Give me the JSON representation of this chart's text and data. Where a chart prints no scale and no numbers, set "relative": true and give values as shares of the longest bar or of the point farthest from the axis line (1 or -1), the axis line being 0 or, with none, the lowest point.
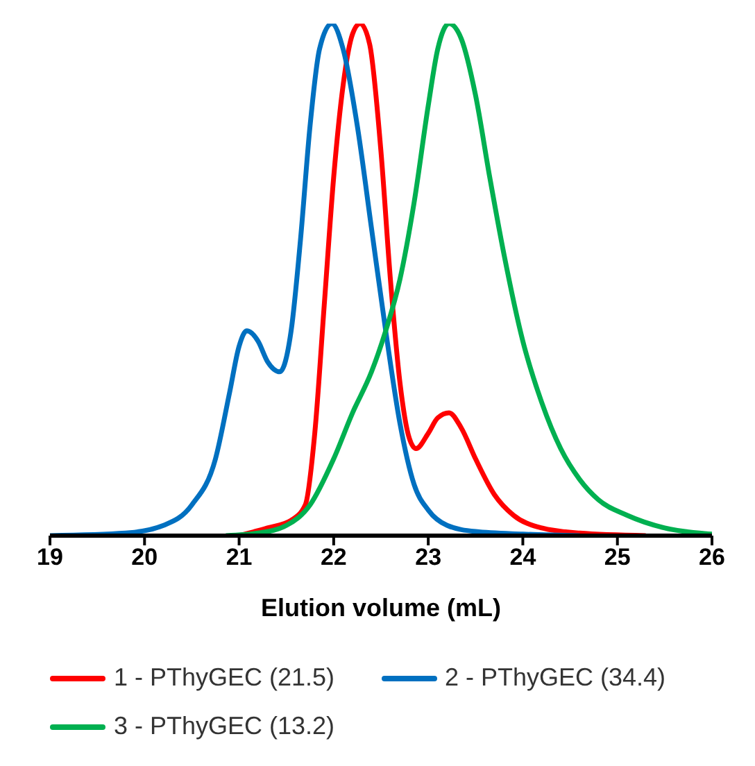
{
  "chart_data": {
    "type": "line",
    "xlabel": "Elution volume (mL)",
    "relative": true,
    "xlim": [
      19,
      26
    ],
    "xticks": [
      19,
      20,
      21,
      22,
      23,
      24,
      25,
      26
    ],
    "legend": "bottom",
    "grid": false,
    "marker": "none",
    "line_style": "solid",
    "series": [
      {
        "name": "1 - PThyGEC (21.5)",
        "color": "#ff0000",
        "x": [
          21.0,
          21.3,
          21.55,
          21.7,
          21.8,
          21.9,
          22.0,
          22.1,
          22.2,
          22.28,
          22.38,
          22.5,
          22.6,
          22.7,
          22.8,
          22.87,
          23.0,
          23.1,
          23.22,
          23.35,
          23.5,
          23.7,
          23.9,
          24.2,
          24.6,
          25.3
        ],
        "values": [
          0,
          0.015,
          0.03,
          0.06,
          0.2,
          0.45,
          0.7,
          0.88,
          0.98,
          1,
          0.96,
          0.75,
          0.5,
          0.3,
          0.19,
          0.17,
          0.2,
          0.23,
          0.24,
          0.21,
          0.15,
          0.08,
          0.04,
          0.015,
          0.005,
          0
        ]
      },
      {
        "name": "2 - PThyGEC (34.4)",
        "color": "#0070c0",
        "x": [
          19,
          19.8,
          20.2,
          20.5,
          20.75,
          20.9,
          21.0,
          21.08,
          21.2,
          21.3,
          21.43,
          21.55,
          21.65,
          21.75,
          21.85,
          21.98,
          22.1,
          22.25,
          22.4,
          22.55,
          22.7,
          22.85,
          23.0,
          23.2,
          23.5,
          24,
          24.6
        ],
        "values": [
          0,
          0.005,
          0.02,
          0.06,
          0.15,
          0.28,
          0.37,
          0.4,
          0.38,
          0.34,
          0.32,
          0.4,
          0.58,
          0.8,
          0.95,
          1,
          0.95,
          0.8,
          0.6,
          0.4,
          0.22,
          0.1,
          0.05,
          0.02,
          0.008,
          0.003,
          0
        ]
      },
      {
        "name": "3 - PThyGEC (13.2)",
        "color": "#00b050",
        "x": [
          20.86,
          21.2,
          21.5,
          21.75,
          22.0,
          22.2,
          22.4,
          22.55,
          22.7,
          22.85,
          23.0,
          23.1,
          23.22,
          23.35,
          23.5,
          23.65,
          23.8,
          24.0,
          24.2,
          24.4,
          24.6,
          24.8,
          25.1,
          25.5,
          26
        ],
        "values": [
          0,
          0.005,
          0.02,
          0.06,
          0.15,
          0.24,
          0.32,
          0.4,
          0.5,
          0.65,
          0.84,
          0.95,
          1,
          0.97,
          0.86,
          0.7,
          0.55,
          0.38,
          0.26,
          0.17,
          0.11,
          0.07,
          0.04,
          0.015,
          0.003
        ]
      }
    ]
  }
}
